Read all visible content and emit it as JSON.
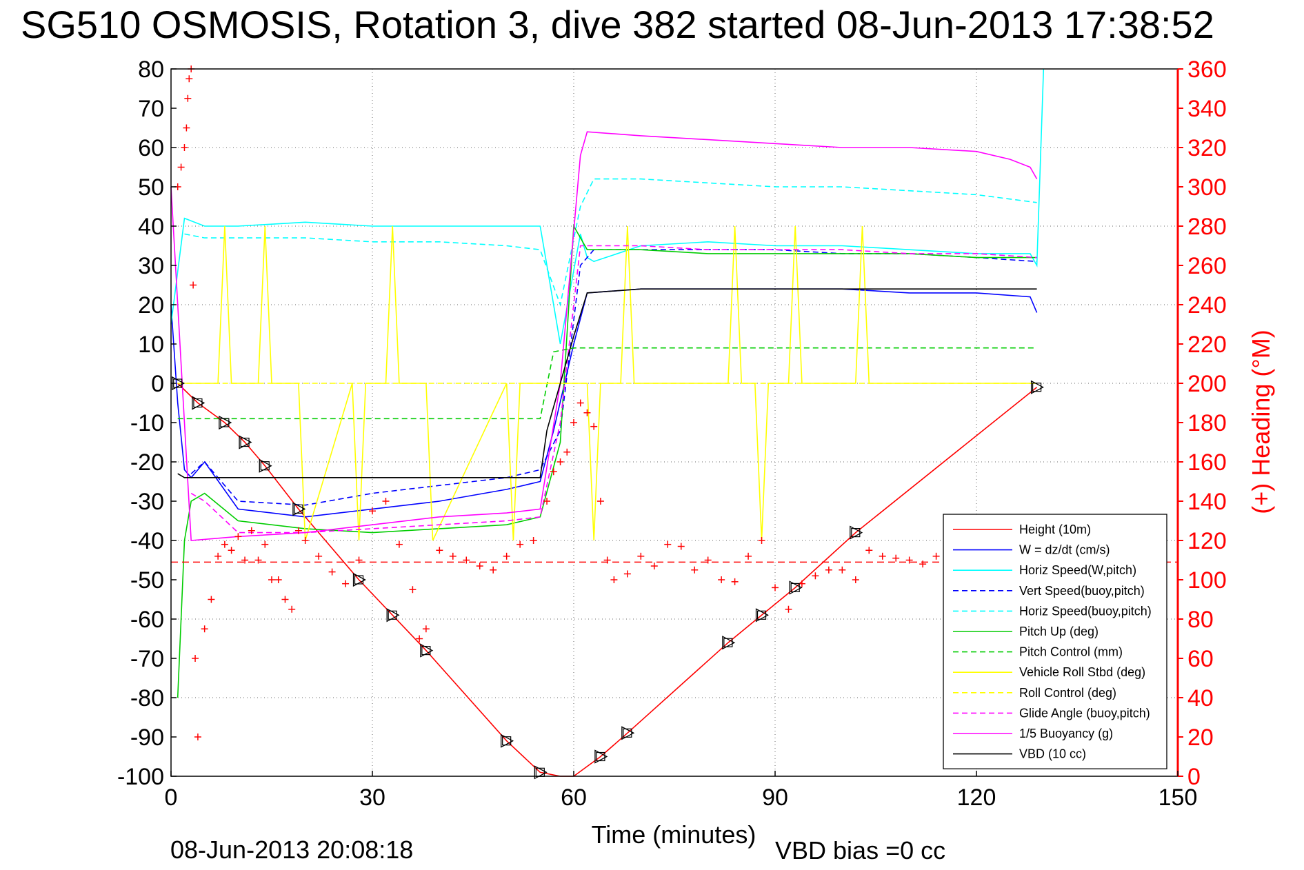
{
  "chart_data": {
    "type": "line",
    "title": "SG510 OSMOSIS, Rotation 3, dive 382 started 08-Jun-2013 17:38:52",
    "xlabel": "Time (minutes)",
    "ylabel_right": "(+) Heading (°M)",
    "footer_left": "08-Jun-2013 20:08:18",
    "footer_right": "VBD bias =0 cc",
    "xlim": [
      0,
      150
    ],
    "ylim": [
      -100,
      80
    ],
    "ylim_right": [
      0,
      360
    ],
    "x_ticks": [
      "0",
      "30",
      "60",
      "90",
      "120",
      "150"
    ],
    "y_ticks": [
      "80",
      "70",
      "60",
      "50",
      "40",
      "30",
      "20",
      "10",
      "0",
      "-10",
      "-20",
      "-30",
      "-40",
      "-50",
      "-60",
      "-70",
      "-80",
      "-90",
      "-100"
    ],
    "y_right_ticks": [
      "360",
      "340",
      "320",
      "300",
      "280",
      "260",
      "240",
      "220",
      "200",
      "180",
      "160",
      "140",
      "120",
      "100",
      "80",
      "60",
      "40",
      "20",
      "0"
    ],
    "grid": true,
    "legend_position": "bottom-right",
    "series": [
      {
        "name": "Height (10m)",
        "color": "#ff0000",
        "style": "solid",
        "x": [
          1,
          4,
          8,
          11,
          14,
          19,
          28,
          33,
          38,
          50,
          55,
          58,
          60,
          64,
          68,
          83,
          88,
          93,
          102,
          129
        ],
        "y": [
          0,
          -5,
          -10,
          -15,
          -21,
          -32,
          -50,
          -59,
          -68,
          -91,
          -99,
          -100,
          -100,
          -95,
          -89,
          -66,
          -59,
          -52,
          -38,
          -1
        ]
      },
      {
        "name": "W = dz/dt (cm/s)",
        "color": "#0000ff",
        "style": "solid",
        "x": [
          0,
          1,
          2,
          3,
          5,
          10,
          20,
          30,
          40,
          50,
          55,
          57,
          60,
          62,
          70,
          80,
          90,
          100,
          110,
          120,
          128,
          129
        ],
        "y": [
          20,
          -5,
          -22,
          -24,
          -20,
          -32,
          -34,
          -32,
          -30,
          -27,
          -25,
          -12,
          10,
          23,
          24,
          24,
          24,
          24,
          23,
          23,
          22,
          18
        ]
      },
      {
        "name": "Horiz Speed(W,pitch)",
        "color": "#00ffff",
        "style": "solid",
        "x": [
          0,
          2,
          5,
          10,
          20,
          30,
          40,
          50,
          55,
          56,
          58,
          61,
          62,
          63,
          70,
          80,
          90,
          100,
          110,
          120,
          128,
          129,
          130
        ],
        "y": [
          15,
          42,
          40,
          40,
          41,
          40,
          40,
          40,
          40,
          30,
          10,
          38,
          32,
          31,
          35,
          36,
          35,
          35,
          34,
          33,
          33,
          30,
          80
        ]
      },
      {
        "name": "Vert Speed(buoy,pitch)",
        "color": "#0000ff",
        "style": "dashed",
        "x": [
          3,
          5,
          10,
          20,
          30,
          40,
          50,
          55,
          58,
          61,
          63,
          70,
          80,
          90,
          100,
          110,
          120,
          129
        ],
        "y": [
          -23,
          -20,
          -30,
          -31,
          -28,
          -26,
          -24,
          -22,
          -12,
          30,
          34,
          34,
          34,
          34,
          33,
          33,
          32,
          31
        ]
      },
      {
        "name": "Horiz Speed(buoy,pitch)",
        "color": "#00ffff",
        "style": "dashed",
        "x": [
          2,
          5,
          10,
          20,
          30,
          40,
          50,
          55,
          58,
          61,
          63,
          70,
          80,
          90,
          100,
          110,
          120,
          129
        ],
        "y": [
          38,
          37,
          37,
          37,
          36,
          36,
          35,
          34,
          20,
          45,
          52,
          52,
          51,
          50,
          50,
          49,
          48,
          46
        ]
      },
      {
        "name": "Pitch Up (deg)",
        "color": "#00cc00",
        "style": "solid",
        "x": [
          1,
          2,
          3,
          5,
          10,
          20,
          30,
          40,
          50,
          55,
          58,
          60,
          62,
          70,
          80,
          90,
          100,
          110,
          120,
          129
        ],
        "y": [
          -80,
          -40,
          -30,
          -28,
          -35,
          -37,
          -38,
          -37,
          -36,
          -34,
          -15,
          40,
          34,
          34,
          33,
          33,
          33,
          33,
          32,
          32
        ]
      },
      {
        "name": "Pitch Control (mm)",
        "color": "#00cc00",
        "style": "dashed",
        "x": [
          1,
          10,
          20,
          30,
          40,
          50,
          55,
          57,
          60,
          65,
          80,
          100,
          120,
          129
        ],
        "y": [
          -9,
          -9,
          -9,
          -9,
          -9,
          -9,
          -9,
          8,
          9,
          9,
          9,
          9,
          9,
          9
        ]
      },
      {
        "name": "Vehicle Roll Stbd (deg)",
        "color": "#ffff00",
        "style": "solid",
        "x": [
          1,
          5,
          7,
          8,
          9,
          13,
          14,
          15,
          19,
          20,
          27,
          28,
          29,
          32,
          33,
          34,
          38,
          39,
          50,
          51,
          52,
          57,
          62,
          63,
          64,
          67,
          68,
          69,
          83,
          84,
          85,
          87,
          88,
          89,
          92,
          93,
          94,
          102,
          103,
          104,
          129
        ],
        "y": [
          0,
          0,
          0,
          40,
          0,
          0,
          40,
          0,
          0,
          -40,
          0,
          -40,
          0,
          0,
          40,
          0,
          0,
          -40,
          0,
          -40,
          0,
          0,
          0,
          -40,
          0,
          0,
          40,
          0,
          0,
          40,
          0,
          0,
          -40,
          0,
          0,
          40,
          0,
          0,
          40,
          0,
          0
        ]
      },
      {
        "name": "Roll Control (deg)",
        "color": "#ffff00",
        "style": "dashed",
        "x": [
          1,
          10,
          20,
          30,
          40,
          50,
          55,
          60,
          80,
          100,
          129
        ],
        "y": [
          0,
          0,
          0,
          0,
          0,
          0,
          0,
          0,
          0,
          0,
          0
        ]
      },
      {
        "name": "Glide Angle (buoy,pitch)",
        "color": "#ff00ff",
        "style": "dashed",
        "x": [
          3,
          5,
          10,
          20,
          30,
          40,
          50,
          55,
          58,
          61,
          63,
          70,
          80,
          90,
          100,
          110,
          120,
          129
        ],
        "y": [
          -28,
          -30,
          -38,
          -38,
          -37,
          -36,
          -35,
          -34,
          -10,
          35,
          35,
          35,
          34,
          34,
          34,
          33,
          33,
          32
        ]
      },
      {
        "name": "1/5 Buoyancy (g)",
        "color": "#ff00ff",
        "style": "solid",
        "x": [
          0,
          3,
          10,
          20,
          30,
          40,
          50,
          55,
          58,
          61,
          62,
          70,
          80,
          90,
          100,
          110,
          120,
          125,
          128,
          129
        ],
        "y": [
          50,
          -40,
          -39,
          -38,
          -36,
          -34,
          -33,
          -32,
          0,
          58,
          64,
          63,
          62,
          61,
          60,
          60,
          59,
          57,
          55,
          52
        ]
      },
      {
        "name": "VBD (10 cc)",
        "color": "#000000",
        "style": "solid",
        "x": [
          1,
          2,
          10,
          20,
          30,
          40,
          50,
          55,
          56,
          58,
          60,
          62,
          70,
          80,
          90,
          100,
          110,
          120,
          129
        ],
        "y": [
          -23,
          -24,
          -24,
          -24,
          -24,
          -24,
          -24,
          -24,
          -12,
          0,
          12,
          23,
          24,
          24,
          24,
          24,
          24,
          24,
          24
        ]
      }
    ],
    "heading": {
      "name": "(+) Heading",
      "color": "#ff0000",
      "marker": "+",
      "mean": 109,
      "x": [
        1.0,
        1.5,
        2.0,
        2.3,
        2.5,
        2.7,
        3.0,
        3.3,
        3.6,
        4,
        5,
        6,
        7,
        8,
        9,
        10,
        11,
        12,
        13,
        14,
        15,
        16,
        17,
        18,
        19,
        20,
        22,
        24,
        26,
        28,
        30,
        32,
        34,
        36,
        37,
        38,
        40,
        42,
        44,
        46,
        48,
        50,
        52,
        54,
        56,
        57,
        58,
        59,
        60,
        61,
        62,
        63,
        64,
        65,
        66,
        68,
        70,
        72,
        74,
        76,
        78,
        80,
        82,
        84,
        86,
        88,
        90,
        92,
        94,
        96,
        98,
        100,
        102,
        104,
        106,
        108,
        110,
        112,
        114,
        116,
        118,
        120,
        122,
        124,
        126,
        128,
        129
      ],
      "y": [
        300,
        310,
        320,
        330,
        345,
        355,
        360,
        250,
        60,
        20,
        75,
        90,
        112,
        118,
        115,
        122,
        110,
        125,
        110,
        118,
        100,
        100,
        90,
        85,
        125,
        120,
        112,
        104,
        98,
        110,
        135,
        140,
        118,
        95,
        70,
        75,
        115,
        112,
        110,
        107,
        105,
        112,
        118,
        120,
        140,
        155,
        160,
        165,
        180,
        190,
        185,
        178,
        140,
        110,
        100,
        103,
        112,
        107,
        118,
        117,
        105,
        110,
        100,
        99,
        112,
        120,
        96,
        85,
        98,
        102,
        105,
        105,
        100,
        115,
        112,
        111,
        110,
        108,
        112,
        115,
        120,
        122,
        124,
        118,
        124,
        130,
        116
      ]
    },
    "markers": {
      "type": "triangle-square",
      "color": "#000000",
      "x": [
        1,
        4,
        8,
        11,
        14,
        19,
        28,
        33,
        38,
        50,
        55,
        64,
        68,
        83,
        88,
        93,
        102,
        129
      ],
      "y": [
        0,
        -5,
        -10,
        -15,
        -21,
        -32,
        -50,
        -59,
        -68,
        -91,
        -99,
        -95,
        -89,
        -66,
        -59,
        -52,
        -38,
        -1
      ]
    }
  }
}
